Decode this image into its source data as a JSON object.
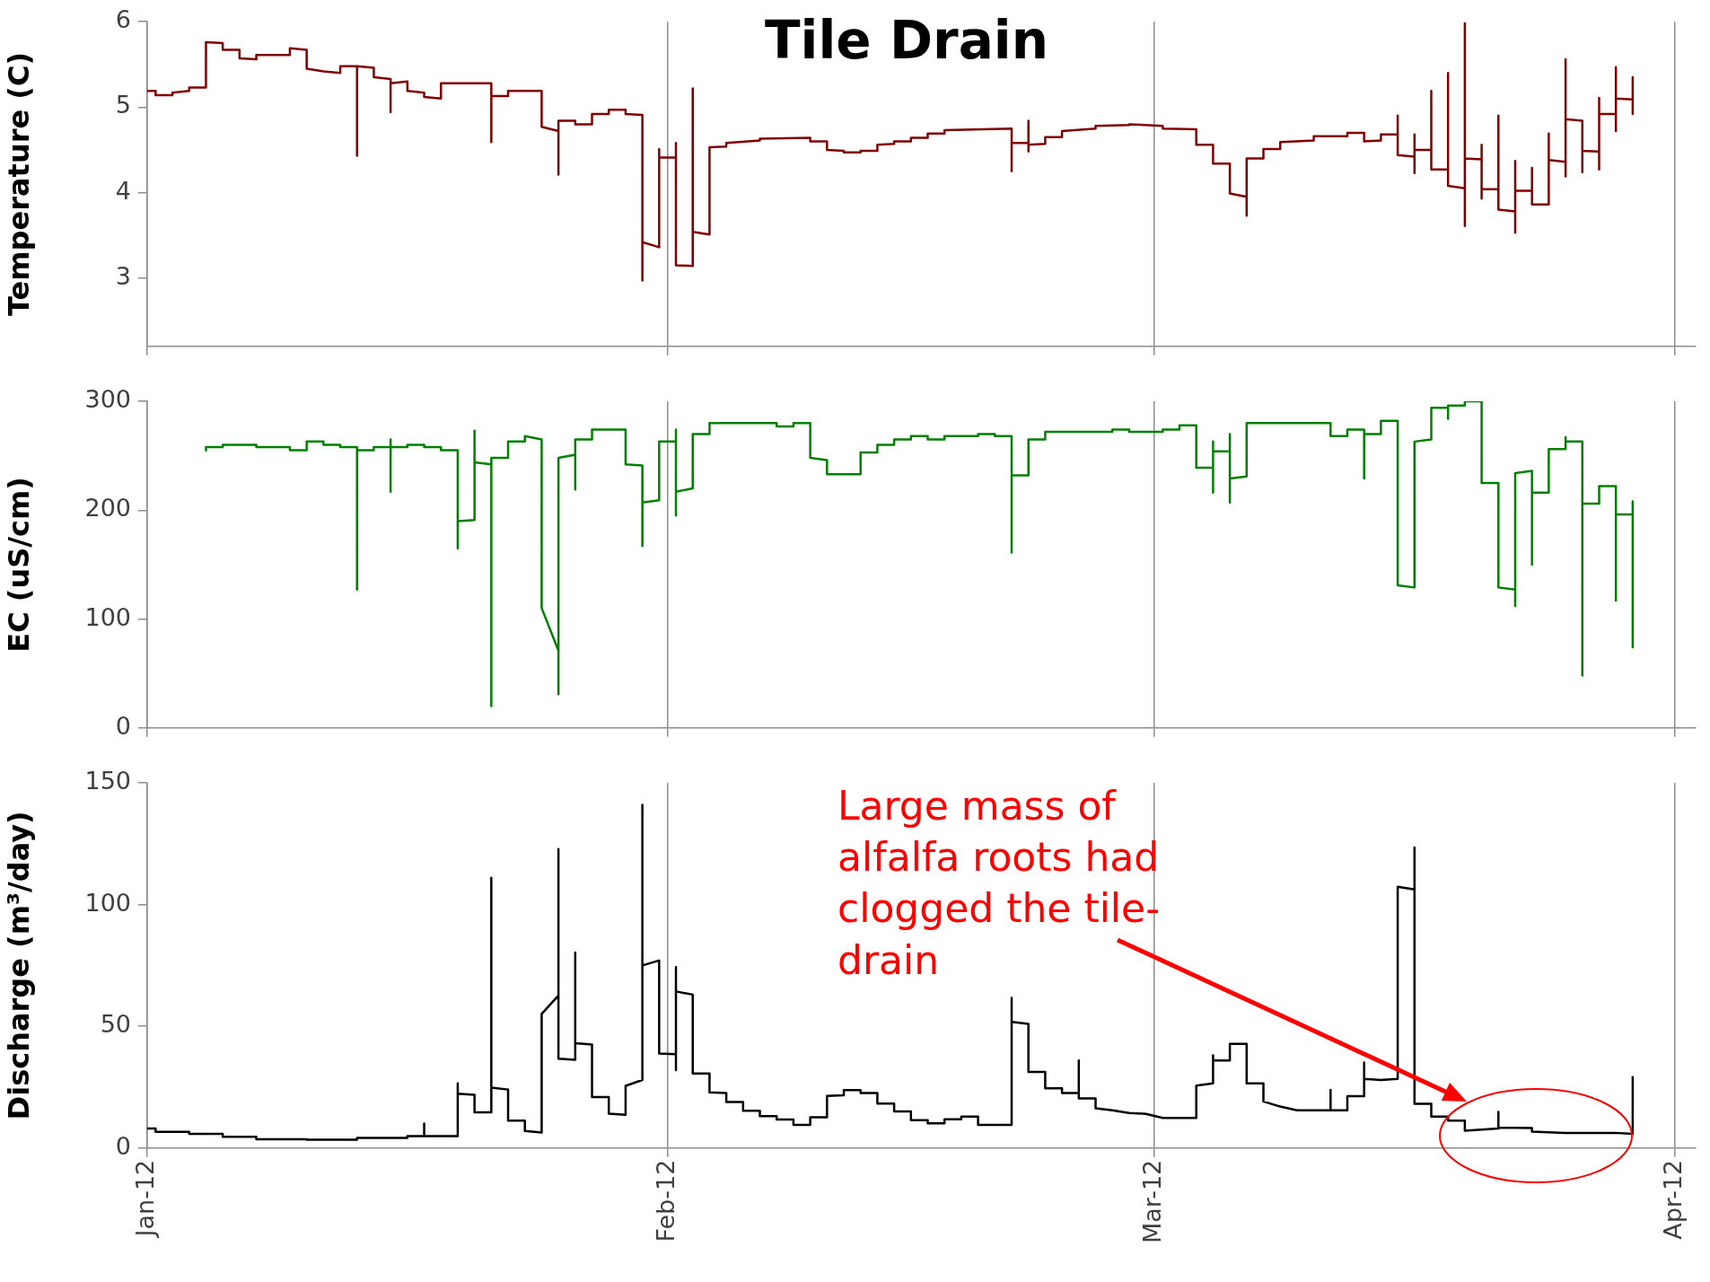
{
  "chart_data": [
    {
      "type": "line",
      "title": "Tile Drain",
      "ylabel": "Temperature (C)",
      "grid": "x",
      "tick_labels": "y",
      "xlim": [
        "2012-01-01",
        "2012-04-02T06:00"
      ],
      "xticks": [
        {
          "value": "2012-01-01",
          "label": null
        },
        {
          "value": "2012-02-01",
          "label": null
        },
        {
          "value": "2012-03-01",
          "label": null
        },
        {
          "value": "2012-04-01",
          "label": null
        }
      ],
      "ylim": [
        2.2,
        6
      ],
      "yticks": [
        3,
        4,
        5,
        6
      ],
      "x": [
        "2012-01-01T00:00",
        "2012-01-01T12:00",
        "2012-01-01T12:00",
        "2012-01-02T12:00",
        "2012-01-02T12:00",
        "2012-01-03T12:00",
        "2012-01-03T12:00",
        "2012-01-04T12:00",
        "2012-01-04T12:00",
        "2012-01-05T12:00",
        "2012-01-05T12:00",
        "2012-01-06T12:00",
        "2012-01-06T12:00",
        "2012-01-07T12:00",
        "2012-01-07T12:00",
        "2012-01-09T12:00",
        "2012-01-09T12:00",
        "2012-01-10T12:00",
        "2012-01-10T12:00",
        "2012-01-11T12:00",
        "2012-01-12T12:00",
        "2012-01-12T12:00",
        "2012-01-13T12:00",
        "2012-01-13T12:00",
        "2012-01-13T12:00",
        "2012-01-14T12:00",
        "2012-01-14T12:00",
        "2012-01-15T12:00",
        "2012-01-15T12:00",
        "2012-01-15T12:00",
        "2012-01-16T12:00",
        "2012-01-16T12:00",
        "2012-01-17T12:00",
        "2012-01-17T12:00",
        "2012-01-18T12:00",
        "2012-01-18T12:00",
        "2012-01-21T12:00",
        "2012-01-21T12:00",
        "2012-01-21T12:00",
        "2012-01-22T12:00",
        "2012-01-22T12:00",
        "2012-01-24T12:00",
        "2012-01-24T12:00",
        "2012-01-25T12:00",
        "2012-01-25T12:00",
        "2012-01-25T12:00",
        "2012-01-26T12:00",
        "2012-01-26T12:00",
        "2012-01-27T12:00",
        "2012-01-27T12:00",
        "2012-01-28T12:00",
        "2012-01-28T12:00",
        "2012-01-29T12:00",
        "2012-01-29T12:00",
        "2012-01-30T12:00",
        "2012-01-30T12:00",
        "2012-01-30T12:00",
        "2012-01-31T12:00",
        "2012-01-31T12:00",
        "2012-01-31T12:00",
        "2012-02-01T12:00",
        "2012-02-01T12:00",
        "2012-02-01T12:00",
        "2012-02-02T12:00",
        "2012-02-02T12:00",
        "2012-02-02T12:00",
        "2012-02-03T12:00",
        "2012-02-03T12:00",
        "2012-02-04T12:00",
        "2012-02-04T12:00",
        "2012-02-06T12:00",
        "2012-02-06T12:00",
        "2012-02-09T12:00",
        "2012-02-09T12:00",
        "2012-02-10T12:00",
        "2012-02-10T12:00",
        "2012-02-11T12:00",
        "2012-02-11T12:00",
        "2012-02-12T12:00",
        "2012-02-12T12:00",
        "2012-02-13T12:00",
        "2012-02-13T12:00",
        "2012-02-14T12:00",
        "2012-02-14T12:00",
        "2012-02-15T12:00",
        "2012-02-15T12:00",
        "2012-02-16T12:00",
        "2012-02-16T12:00",
        "2012-02-17T12:00",
        "2012-02-17T12:00",
        "2012-02-21T12:00",
        "2012-02-21T12:00",
        "2012-02-21T12:00",
        "2012-02-22T12:00",
        "2012-02-22T12:00",
        "2012-02-22T12:00",
        "2012-02-22T12:00",
        "2012-02-23T12:00",
        "2012-02-23T12:00",
        "2012-02-24T12:00",
        "2012-02-24T12:00",
        "2012-02-26T12:00",
        "2012-02-26T12:00",
        "2012-02-28T12:00",
        "2012-02-28T12:00",
        "2012-03-01T12:00",
        "2012-03-01T12:00",
        "2012-03-03T12:00",
        "2012-03-03T12:00",
        "2012-03-04T12:00",
        "2012-03-04T12:00",
        "2012-03-05T12:00",
        "2012-03-05T12:00",
        "2012-03-06T12:00",
        "2012-03-06T12:00",
        "2012-03-06T12:00",
        "2012-03-07T12:00",
        "2012-03-07T12:00",
        "2012-03-08T12:00",
        "2012-03-08T12:00",
        "2012-03-10T12:00",
        "2012-03-10T12:00",
        "2012-03-12T12:00",
        "2012-03-12T12:00",
        "2012-03-13T12:00",
        "2012-03-13T12:00",
        "2012-03-14T12:00",
        "2012-03-14T12:00",
        "2012-03-15T12:00",
        "2012-03-15T12:00",
        "2012-03-15T12:00",
        "2012-03-16T12:00",
        "2012-03-16T12:00",
        "2012-03-16T12:00",
        "2012-03-16T12:00",
        "2012-03-17T12:00",
        "2012-03-17T12:00",
        "2012-03-17T12:00",
        "2012-03-18T12:00",
        "2012-03-18T12:00",
        "2012-03-18T12:00",
        "2012-03-19T12:00",
        "2012-03-19T12:00",
        "2012-03-19T12:00",
        "2012-03-19T12:00",
        "2012-03-20T12:00",
        "2012-03-20T12:00",
        "2012-03-20T12:00",
        "2012-03-20T12:00",
        "2012-03-21T12:00",
        "2012-03-21T12:00",
        "2012-03-21T12:00",
        "2012-03-22T12:00",
        "2012-03-22T12:00",
        "2012-03-22T12:00",
        "2012-03-22T12:00",
        "2012-03-23T12:00",
        "2012-03-23T12:00",
        "2012-03-23T12:00",
        "2012-03-24T12:00",
        "2012-03-24T12:00",
        "2012-03-24T12:00",
        "2012-03-25T12:00",
        "2012-03-25T12:00",
        "2012-03-25T12:00",
        "2012-03-25T12:00",
        "2012-03-26T12:00",
        "2012-03-26T12:00",
        "2012-03-26T12:00",
        "2012-03-27T12:00",
        "2012-03-27T12:00",
        "2012-03-27T12:00",
        "2012-03-27T12:00",
        "2012-03-28T12:00",
        "2012-03-28T12:00",
        "2012-03-28T12:00",
        "2012-03-28T12:00",
        "2012-03-29T12:00",
        "2012-03-29T12:00",
        "2012-03-29T12:00"
      ],
      "series": [
        {
          "color": "#800000",
          "values": [
            5.19,
            5.19,
            5.14,
            5.14,
            5.17,
            5.19,
            5.23,
            5.23,
            5.76,
            5.75,
            5.67,
            5.67,
            5.57,
            5.56,
            5.61,
            5.61,
            5.69,
            5.67,
            5.45,
            5.42,
            5.4,
            5.48,
            5.48,
            4.43,
            5.48,
            5.46,
            5.35,
            5.33,
            4.94,
            5.28,
            5.3,
            5.19,
            5.17,
            5.12,
            5.1,
            5.28,
            5.28,
            4.59,
            5.13,
            5.13,
            5.19,
            5.19,
            4.77,
            4.72,
            4.21,
            4.84,
            4.84,
            4.8,
            4.8,
            4.92,
            4.92,
            4.97,
            4.97,
            4.92,
            4.91,
            2.97,
            3.42,
            3.36,
            4.51,
            4.41,
            4.41,
            4.58,
            3.15,
            3.14,
            5.22,
            3.54,
            3.51,
            4.53,
            4.54,
            4.58,
            4.61,
            4.63,
            4.64,
            4.6,
            4.6,
            4.5,
            4.49,
            4.47,
            4.47,
            4.49,
            4.49,
            4.56,
            4.57,
            4.6,
            4.6,
            4.64,
            4.64,
            4.69,
            4.69,
            4.73,
            4.75,
            4.25,
            4.58,
            4.58,
            4.84,
            4.48,
            4.56,
            4.57,
            4.65,
            4.65,
            4.72,
            4.75,
            4.78,
            4.79,
            4.8,
            4.78,
            4.75,
            4.74,
            4.56,
            4.56,
            4.34,
            4.34,
            3.99,
            3.95,
            3.73,
            4.4,
            4.4,
            4.51,
            4.51,
            4.59,
            4.61,
            4.66,
            4.66,
            4.7,
            4.7,
            4.6,
            4.61,
            4.68,
            4.68,
            4.9,
            4.44,
            4.42,
            4.68,
            4.23,
            4.5,
            4.5,
            5.19,
            4.27,
            4.27,
            5.4,
            4.08,
            4.05,
            5.98,
            3.61,
            4.4,
            4.39,
            3.93,
            4.56,
            4.04,
            4.04,
            4.9,
            3.8,
            3.78,
            3.53,
            4.37,
            4.02,
            4.02,
            4.29,
            3.86,
            3.86,
            4.69,
            4.38,
            4.36,
            5.56,
            4.19,
            4.86,
            4.84,
            4.24,
            4.49,
            4.48,
            4.27,
            5.11,
            4.92,
            4.92,
            5.47,
            4.72,
            5.1,
            5.09,
            5.35,
            4.92
          ]
        }
      ]
    },
    {
      "type": "line",
      "ylabel": "EC (uS/cm)",
      "grid": "x",
      "tick_labels": "y",
      "xlim": [
        "2012-01-01",
        "2012-04-02T06:00"
      ],
      "xticks": [
        {
          "value": "2012-01-01",
          "label": null
        },
        {
          "value": "2012-02-01",
          "label": null
        },
        {
          "value": "2012-03-01",
          "label": null
        },
        {
          "value": "2012-04-01",
          "label": null
        }
      ],
      "ylim": [
        0,
        300
      ],
      "yticks": [
        0,
        100,
        200,
        300
      ],
      "x": [
        "2012-01-04T12:00",
        "2012-01-04T12:00",
        "2012-01-05T12:00",
        "2012-01-05T12:00",
        "2012-01-07T12:00",
        "2012-01-07T12:00",
        "2012-01-09T12:00",
        "2012-01-09T12:00",
        "2012-01-10T12:00",
        "2012-01-10T12:00",
        "2012-01-11T12:00",
        "2012-01-11T12:00",
        "2012-01-12T12:00",
        "2012-01-12T12:00",
        "2012-01-13T12:00",
        "2012-01-13T12:00",
        "2012-01-13T12:00",
        "2012-01-14T12:00",
        "2012-01-14T12:00",
        "2012-01-15T12:00",
        "2012-01-15T12:00",
        "2012-01-15T12:00",
        "2012-01-15T12:00",
        "2012-01-16T12:00",
        "2012-01-16T12:00",
        "2012-01-17T12:00",
        "2012-01-17T12:00",
        "2012-01-18T12:00",
        "2012-01-18T12:00",
        "2012-01-19T12:00",
        "2012-01-19T12:00",
        "2012-01-19T12:00",
        "2012-01-20T12:00",
        "2012-01-20T12:00",
        "2012-01-20T12:00",
        "2012-01-21T12:00",
        "2012-01-21T12:00",
        "2012-01-21T12:00",
        "2012-01-22T12:00",
        "2012-01-22T12:00",
        "2012-01-23T12:00",
        "2012-01-23T12:00",
        "2012-01-24T12:00",
        "2012-01-24T12:00",
        "2012-01-25T12:00",
        "2012-01-25T12:00",
        "2012-01-25T12:00",
        "2012-01-26T12:00",
        "2012-01-26T12:00",
        "2012-01-26T12:00",
        "2012-01-27T12:00",
        "2012-01-27T12:00",
        "2012-01-29T12:00",
        "2012-01-29T12:00",
        "2012-01-30T12:00",
        "2012-01-30T12:00",
        "2012-01-30T12:00",
        "2012-01-31T12:00",
        "2012-01-31T12:00",
        "2012-02-01T12:00",
        "2012-02-01T12:00",
        "2012-02-01T12:00",
        "2012-02-01T12:00",
        "2012-02-02T12:00",
        "2012-02-02T12:00",
        "2012-02-03T12:00",
        "2012-02-03T12:00",
        "2012-02-07T12:00",
        "2012-02-07T12:00",
        "2012-02-08T12:00",
        "2012-02-08T12:00",
        "2012-02-09T12:00",
        "2012-02-09T12:00",
        "2012-02-10T12:00",
        "2012-02-10T12:00",
        "2012-02-12T12:00",
        "2012-02-12T12:00",
        "2012-02-13T12:00",
        "2012-02-13T12:00",
        "2012-02-14T12:00",
        "2012-02-14T12:00",
        "2012-02-15T12:00",
        "2012-02-15T12:00",
        "2012-02-16T12:00",
        "2012-02-16T12:00",
        "2012-02-17T12:00",
        "2012-02-17T12:00",
        "2012-02-19T12:00",
        "2012-02-19T12:00",
        "2012-02-20T12:00",
        "2012-02-20T12:00",
        "2012-02-21T12:00",
        "2012-02-21T12:00",
        "2012-02-21T12:00",
        "2012-02-22T12:00",
        "2012-02-22T12:00",
        "2012-02-23T12:00",
        "2012-02-23T12:00",
        "2012-02-27T12:00",
        "2012-02-27T12:00",
        "2012-02-28T12:00",
        "2012-02-28T12:00",
        "2012-03-01T12:00",
        "2012-03-01T12:00",
        "2012-03-02T12:00",
        "2012-03-02T12:00",
        "2012-03-03T12:00",
        "2012-03-03T12:00",
        "2012-03-04T12:00",
        "2012-03-04T12:00",
        "2012-03-04T12:00",
        "2012-03-04T12:00",
        "2012-03-05T12:00",
        "2012-03-05T12:00",
        "2012-03-05T12:00",
        "2012-03-05T12:00",
        "2012-03-06T12:00",
        "2012-03-06T12:00",
        "2012-03-11T12:00",
        "2012-03-11T12:00",
        "2012-03-12T12:00",
        "2012-03-12T12:00",
        "2012-03-13T12:00",
        "2012-03-13T12:00",
        "2012-03-13T12:00",
        "2012-03-14T12:00",
        "2012-03-14T12:00",
        "2012-03-15T12:00",
        "2012-03-15T12:00",
        "2012-03-16T12:00",
        "2012-03-16T12:00",
        "2012-03-17T12:00",
        "2012-03-17T12:00",
        "2012-03-18T12:00",
        "2012-03-18T12:00",
        "2012-03-18T12:00",
        "2012-03-19T12:00",
        "2012-03-19T12:00",
        "2012-03-20T12:00",
        "2012-03-20T12:00",
        "2012-03-21T12:00",
        "2012-03-21T12:00",
        "2012-03-22T12:00",
        "2012-03-22T12:00",
        "2012-03-22T12:00",
        "2012-03-23T12:00",
        "2012-03-23T12:00",
        "2012-03-23T12:00",
        "2012-03-24T12:00",
        "2012-03-24T12:00",
        "2012-03-25T12:00",
        "2012-03-25T12:00",
        "2012-03-25T12:00",
        "2012-03-26T12:00",
        "2012-03-26T12:00",
        "2012-03-26T12:00",
        "2012-03-27T12:00",
        "2012-03-27T12:00",
        "2012-03-28T12:00",
        "2012-03-28T12:00",
        "2012-03-28T12:00",
        "2012-03-29T12:00",
        "2012-03-29T12:00",
        "2012-03-29T12:00"
      ],
      "series": [
        {
          "color": "#008000",
          "values": [
            254,
            258,
            258,
            260,
            260,
            258,
            258,
            255,
            255,
            263,
            263,
            260,
            260,
            258,
            258,
            127,
            255,
            255,
            258,
            258,
            265,
            217,
            258,
            258,
            260,
            260,
            258,
            258,
            255,
            255,
            165,
            190,
            191,
            273,
            244,
            242,
            20,
            248,
            248,
            263,
            263,
            268,
            265,
            110,
            71,
            31,
            248,
            251,
            219,
            265,
            265,
            274,
            274,
            242,
            241,
            167,
            207,
            209,
            263,
            263,
            274,
            195,
            217,
            220,
            270,
            270,
            280,
            280,
            277,
            277,
            280,
            280,
            248,
            246,
            233,
            233,
            253,
            253,
            260,
            260,
            265,
            265,
            268,
            268,
            265,
            265,
            268,
            268,
            270,
            270,
            268,
            268,
            161,
            232,
            232,
            265,
            265,
            272,
            272,
            274,
            274,
            272,
            272,
            274,
            274,
            278,
            278,
            239,
            239,
            263,
            216,
            254,
            254,
            270,
            207,
            229,
            231,
            280,
            280,
            268,
            268,
            274,
            274,
            229,
            270,
            270,
            282,
            282,
            131,
            129,
            263,
            265,
            294,
            294,
            284,
            296,
            296,
            300,
            300,
            225,
            225,
            129,
            127,
            112,
            234,
            236,
            150,
            216,
            216,
            256,
            256,
            267,
            263,
            263,
            48,
            206,
            206,
            222,
            222,
            117,
            196,
            196,
            208,
            74
          ]
        }
      ]
    },
    {
      "type": "line",
      "ylabel": "Discharge (m³/day)",
      "grid": "x",
      "xlim": [
        "2012-01-01",
        "2012-04-02T06:00"
      ],
      "xticks": [
        {
          "value": "2012-01-01",
          "label": "Jan-12"
        },
        {
          "value": "2012-02-01",
          "label": "Feb-12"
        },
        {
          "value": "2012-03-01",
          "label": "Mar-12"
        },
        {
          "value": "2012-04-01",
          "label": "Apr-12"
        }
      ],
      "ylim": [
        0,
        150
      ],
      "yticks": [
        0,
        50,
        100,
        150
      ],
      "annotations": [
        "Large mass of alfalfa roots had clogged the tile-drain"
      ],
      "x": [
        "2012-01-01T00:00",
        "2012-01-01T12:00",
        "2012-01-01T12:00",
        "2012-01-03T12:00",
        "2012-01-03T12:00",
        "2012-01-05T12:00",
        "2012-01-05T12:00",
        "2012-01-07T12:00",
        "2012-01-07T12:00",
        "2012-01-10T12:00",
        "2012-01-10T12:00",
        "2012-01-13T12:00",
        "2012-01-13T12:00",
        "2012-01-16T12:00",
        "2012-01-16T12:00",
        "2012-01-17T12:00",
        "2012-01-17T12:00",
        "2012-01-17T12:00",
        "2012-01-19T12:00",
        "2012-01-19T12:00",
        "2012-01-19T12:00",
        "2012-01-20T12:00",
        "2012-01-20T12:00",
        "2012-01-21T12:00",
        "2012-01-21T12:00",
        "2012-01-21T12:00",
        "2012-01-22T12:00",
        "2012-01-22T12:00",
        "2012-01-23T12:00",
        "2012-01-23T12:00",
        "2012-01-24T12:00",
        "2012-01-24T12:00",
        "2012-01-25T12:00",
        "2012-01-25T12:00",
        "2012-01-25T12:00",
        "2012-01-26T12:00",
        "2012-01-26T12:00",
        "2012-01-26T12:00",
        "2012-01-27T12:00",
        "2012-01-27T12:00",
        "2012-01-28T12:00",
        "2012-01-28T12:00",
        "2012-01-29T12:00",
        "2012-01-29T12:00",
        "2012-01-30T12:00",
        "2012-01-30T12:00",
        "2012-01-30T12:00",
        "2012-01-31T12:00",
        "2012-01-31T12:00",
        "2012-02-01T12:00",
        "2012-02-01T12:00",
        "2012-02-01T12:00",
        "2012-02-01T12:00",
        "2012-02-02T12:00",
        "2012-02-02T12:00",
        "2012-02-03T12:00",
        "2012-02-03T12:00",
        "2012-02-04T12:00",
        "2012-02-04T12:00",
        "2012-02-05T12:00",
        "2012-02-05T12:00",
        "2012-02-06T12:00",
        "2012-02-06T12:00",
        "2012-02-07T12:00",
        "2012-02-07T12:00",
        "2012-02-08T12:00",
        "2012-02-08T12:00",
        "2012-02-09T12:00",
        "2012-02-09T12:00",
        "2012-02-10T12:00",
        "2012-02-10T12:00",
        "2012-02-11T12:00",
        "2012-02-11T12:00",
        "2012-02-12T12:00",
        "2012-02-12T12:00",
        "2012-02-13T12:00",
        "2012-02-13T12:00",
        "2012-02-14T12:00",
        "2012-02-14T12:00",
        "2012-02-15T12:00",
        "2012-02-15T12:00",
        "2012-02-16T12:00",
        "2012-02-16T12:00",
        "2012-02-17T12:00",
        "2012-02-17T12:00",
        "2012-02-18T12:00",
        "2012-02-18T12:00",
        "2012-02-19T12:00",
        "2012-02-19T12:00",
        "2012-02-21T12:00",
        "2012-02-21T12:00",
        "2012-02-21T12:00",
        "2012-02-22T12:00",
        "2012-02-22T12:00",
        "2012-02-23T12:00",
        "2012-02-23T12:00",
        "2012-02-24T12:00",
        "2012-02-24T12:00",
        "2012-02-25T12:00",
        "2012-02-25T12:00",
        "2012-02-25T12:00",
        "2012-02-26T12:00",
        "2012-02-26T12:00",
        "2012-02-27T12:00",
        "2012-02-28T12:00",
        "2012-02-29T12:00",
        "2012-03-01T12:00",
        "2012-03-03T12:00",
        "2012-03-03T12:00",
        "2012-03-04T12:00",
        "2012-03-04T12:00",
        "2012-03-04T12:00",
        "2012-03-05T12:00",
        "2012-03-05T12:00",
        "2012-03-06T12:00",
        "2012-03-06T12:00",
        "2012-03-07T12:00",
        "2012-03-07T12:00",
        "2012-03-08T12:00",
        "2012-03-09T12:00",
        "2012-03-11T12:00",
        "2012-03-11T12:00",
        "2012-03-11T12:00",
        "2012-03-12T12:00",
        "2012-03-12T12:00",
        "2012-03-13T12:00",
        "2012-03-13T12:00",
        "2012-03-13T12:00",
        "2012-03-14T12:00",
        "2012-03-15T12:00",
        "2012-03-15T12:00",
        "2012-03-16T12:00",
        "2012-03-16T12:00",
        "2012-03-16T12:00",
        "2012-03-17T12:00",
        "2012-03-17T12:00",
        "2012-03-18T12:00",
        "2012-03-18T12:00",
        "2012-03-19T12:00",
        "2012-03-19T12:00",
        "2012-03-21T12:00",
        "2012-03-21T12:00",
        "2012-03-21T12:00",
        "2012-03-23T12:00",
        "2012-03-23T12:00",
        "2012-03-25T12:00",
        "2012-03-28T12:00",
        "2012-03-29T12:00",
        "2012-03-29T12:00"
      ],
      "series": [
        {
          "color": "#000000",
          "values": [
            8.0,
            8.0,
            6.6,
            6.6,
            5.8,
            5.8,
            4.6,
            4.6,
            3.6,
            3.6,
            3.4,
            3.4,
            4.1,
            4.1,
            4.9,
            4.9,
            10,
            4.9,
            4.9,
            26.5,
            22.3,
            21.8,
            14.6,
            14.6,
            111,
            24.8,
            24,
            11.2,
            11.2,
            7.0,
            6.3,
            55.1,
            62.6,
            122.8,
            36.7,
            36.2,
            80.3,
            43,
            42.5,
            20.9,
            20.9,
            14.1,
            13.6,
            25.5,
            27.9,
            141,
            75,
            77,
            38.8,
            38.5,
            32,
            74.3,
            64.3,
            63,
            30.6,
            30.6,
            22.8,
            22.6,
            18.9,
            18.9,
            15.3,
            15.3,
            13.1,
            13.1,
            11.7,
            11.7,
            9.5,
            9.5,
            12.6,
            12.6,
            21.4,
            21.6,
            23.8,
            23.8,
            22.6,
            22.6,
            18.2,
            18.2,
            15.0,
            15.0,
            11.4,
            11.4,
            10.1,
            10.1,
            11.8,
            11.8,
            12.9,
            12.9,
            9.5,
            9.5,
            61.7,
            51.8,
            51.0,
            31.2,
            31.2,
            24.5,
            24.5,
            22.6,
            22.6,
            35.9,
            20.4,
            20.4,
            16.3,
            15.5,
            14.4,
            14.0,
            12.3,
            12.3,
            25.6,
            26.5,
            38.1,
            35.9,
            35.9,
            42.8,
            42.8,
            26.5,
            26.5,
            19.1,
            17.0,
            15.5,
            15.5,
            23.9,
            15.5,
            15.5,
            21.3,
            21.3,
            35.1,
            28.4,
            27.9,
            28.4,
            107.3,
            106.2,
            123.4,
            18.1,
            18.1,
            12.9,
            12.9,
            11.2,
            11.2,
            7.1,
            8.0,
            14.8,
            8.4,
            8.2,
            6.7,
            6.2,
            6.2,
            5.8,
            29.5
          ]
        }
      ]
    }
  ]
}
